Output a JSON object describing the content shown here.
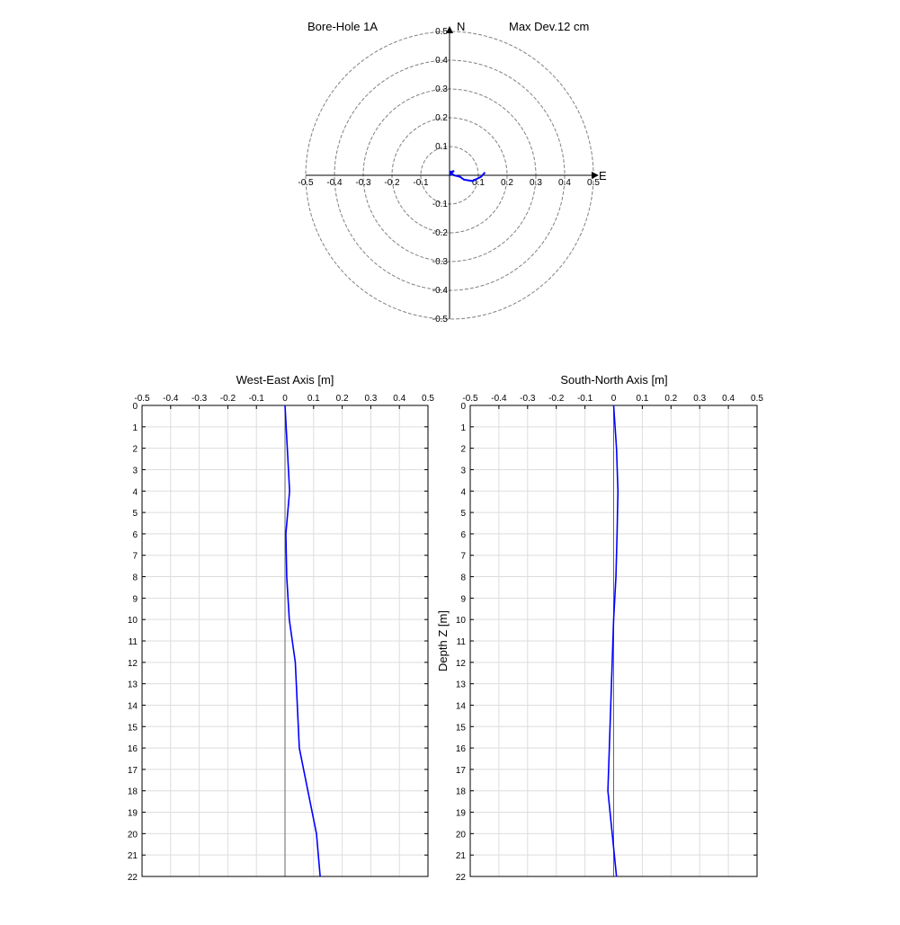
{
  "chart_data": [
    {
      "type": "scatter",
      "subtype": "polar-plan-view",
      "title_left": "Bore-Hole 1A",
      "title_right": "Max Dev.12 cm",
      "north_label": "N",
      "east_label": "E",
      "rings": [
        0.1,
        0.2,
        0.3,
        0.4,
        0.5
      ],
      "xlim": [
        -0.5,
        0.5
      ],
      "ylim": [
        -0.5,
        0.5
      ],
      "x_ticks": [
        "-0.5",
        "-0.4",
        "-0.3",
        "-0.2",
        "-0.1",
        "0.1",
        "0.2",
        "0.3",
        "0.4",
        "0.5"
      ],
      "y_ticks_pos": [
        "0.1",
        "0.2",
        "0.3",
        "0.4",
        "0.5"
      ],
      "y_ticks_neg": [
        "-0.1",
        "-0.2",
        "-0.3",
        "-0.4",
        "-0.5"
      ],
      "series_color": "#0000ff",
      "grid_color": "#808080"
    },
    {
      "type": "line",
      "title": "West-East Axis [m]",
      "ylabel": "",
      "xlim": [
        -0.5,
        0.5
      ],
      "ylim": [
        0,
        22
      ],
      "x_ticks": [
        "-0.5",
        "-0.4",
        "-0.3",
        "-0.2",
        "-0.1",
        "0",
        "0.1",
        "0.2",
        "0.3",
        "0.4",
        "0.5"
      ],
      "y_ticks": [
        "0",
        "1",
        "2",
        "3",
        "4",
        "5",
        "6",
        "7",
        "8",
        "9",
        "10",
        "11",
        "12",
        "13",
        "14",
        "15",
        "16",
        "17",
        "18",
        "19",
        "20",
        "21",
        "22"
      ],
      "grid": true,
      "depth": [
        0,
        2,
        4,
        6,
        8,
        10,
        12,
        14,
        16,
        18,
        20,
        22
      ],
      "values": [
        0,
        0.008,
        0.016,
        0.003,
        0.006,
        0.015,
        0.036,
        0.043,
        0.05,
        0.08,
        0.11,
        0.123
      ],
      "series_color": "#0000ff"
    },
    {
      "type": "line",
      "title": "South-North Axis [m]",
      "ylabel": "Depth Z [m]",
      "xlim": [
        -0.5,
        0.5
      ],
      "ylim": [
        0,
        22
      ],
      "x_ticks": [
        "-0.5",
        "-0.4",
        "-0.3",
        "-0.2",
        "-0.1",
        "0",
        "0.1",
        "0.2",
        "0.3",
        "0.4",
        "0.5"
      ],
      "y_ticks": [
        "0",
        "1",
        "2",
        "3",
        "4",
        "5",
        "6",
        "7",
        "8",
        "9",
        "10",
        "11",
        "12",
        "13",
        "14",
        "15",
        "16",
        "17",
        "18",
        "19",
        "20",
        "21",
        "22"
      ],
      "grid": true,
      "depth": [
        0,
        2,
        4,
        6,
        8,
        10,
        12,
        14,
        16,
        18,
        20,
        22
      ],
      "values": [
        0,
        0.01,
        0.015,
        0.012,
        0.008,
        0.0,
        -0.005,
        -0.01,
        -0.015,
        -0.02,
        -0.005,
        0.01
      ],
      "series_color": "#0000ff"
    }
  ]
}
